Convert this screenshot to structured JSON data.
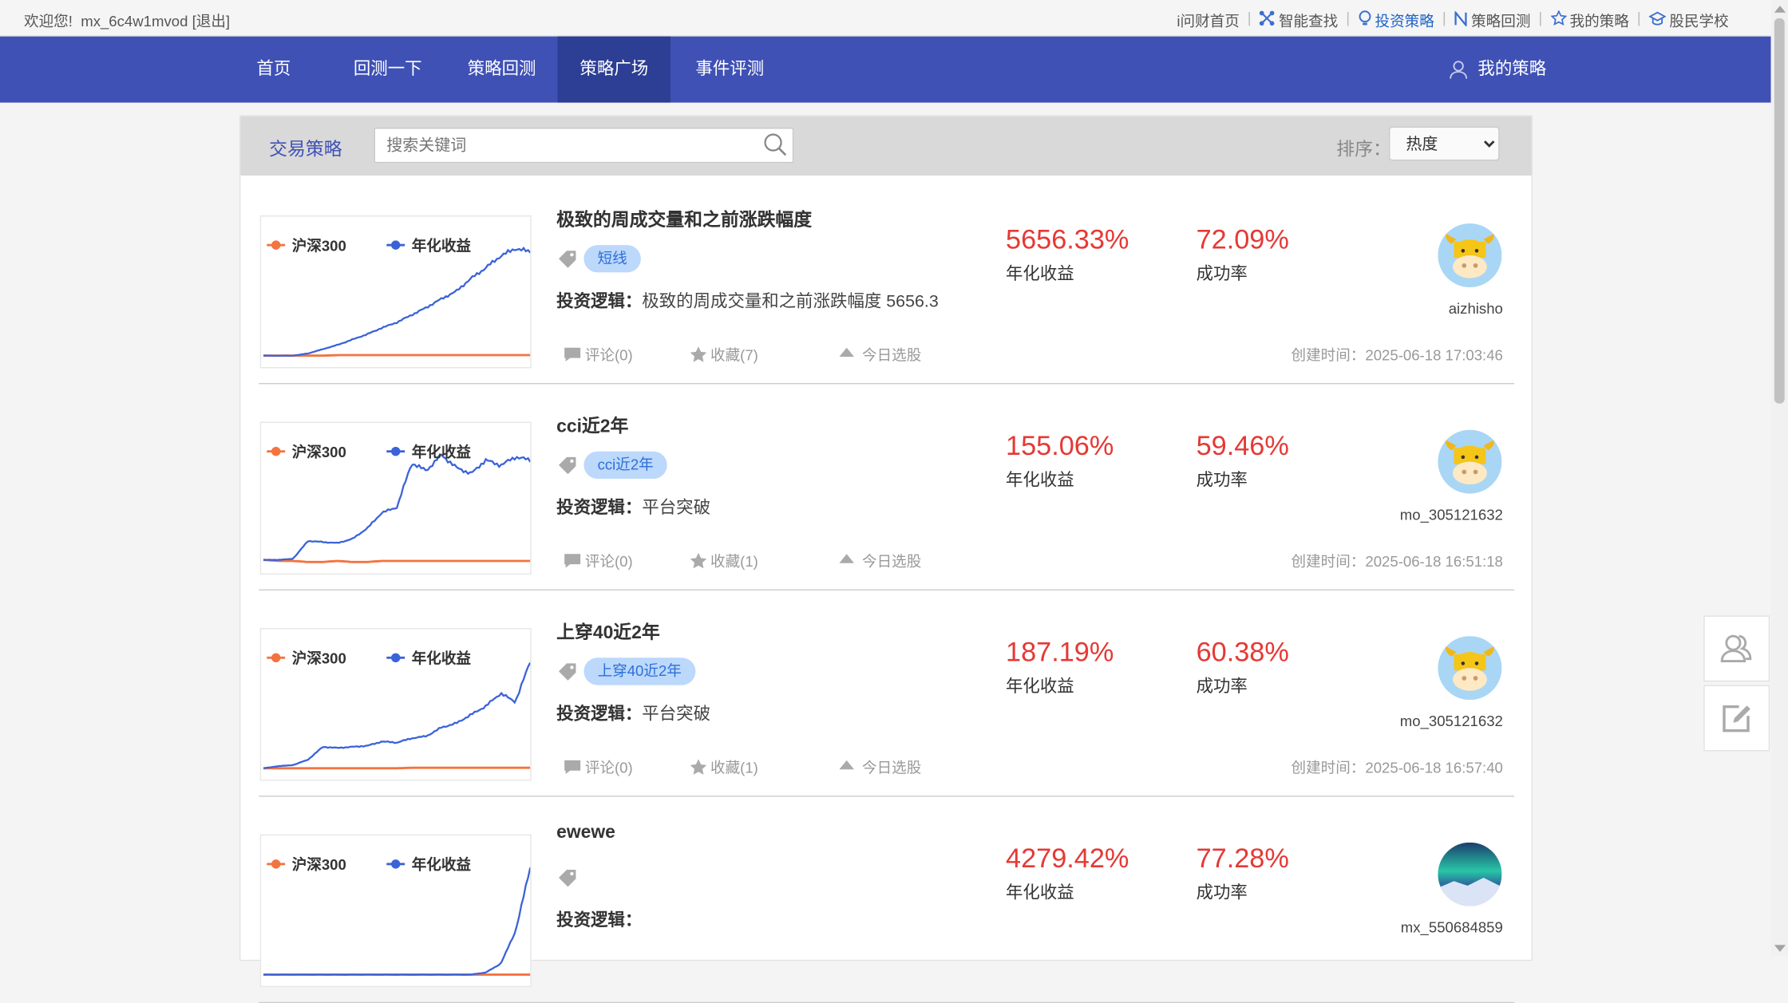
{
  "topbar": {
    "welcome": "欢迎您!",
    "username": "mx_6c4w1mvod",
    "logout": "[退出]",
    "links": [
      {
        "label": "i问财首页",
        "icon": ""
      },
      {
        "label": "智能查找",
        "icon": "network-icon"
      },
      {
        "label": "投资策略",
        "icon": "bulb-icon",
        "active": true
      },
      {
        "label": "策略回测",
        "icon": "n-icon"
      },
      {
        "label": "我的策略",
        "icon": "star-icon"
      },
      {
        "label": "股民学校",
        "icon": "school-icon"
      }
    ]
  },
  "nav": {
    "items": [
      "首页",
      "回测一下",
      "策略回测",
      "策略广场",
      "事件评测"
    ],
    "active": "策略广场",
    "mine": "我的策略"
  },
  "header": {
    "title": "交易策略",
    "search_placeholder": "搜索关键词",
    "sort_label": "排序：",
    "sort_value": "热度"
  },
  "colors": {
    "accent": "#3f51b5",
    "red": "#e53935",
    "hs300": "#f4733f",
    "strategy": "#3b63d8"
  },
  "legend": {
    "benchmark": "沪深300",
    "strategy": "年化收益"
  },
  "labels": {
    "annual": "年化收益",
    "win": "成功率",
    "logic": "投资逻辑：",
    "today": "今日选股",
    "created": "创建时间："
  },
  "cards": [
    {
      "name": "极致的周成交量和之前涨跌幅度",
      "tag": "短线",
      "logic": "极致的周成交量和之前涨跌幅度 5656.3",
      "annual": "5656.33%",
      "win": "72.09%",
      "user": "aizhisho",
      "avatar": "cow",
      "comments": "评论(0)",
      "favorites": "收藏(7)",
      "created": "2025-06-18 17:03:46",
      "chart": {
        "strategy": [
          0,
          0,
          0,
          0.02,
          0.06,
          0.1,
          0.15,
          0.2,
          0.26,
          0.31,
          0.38,
          0.45,
          0.53,
          0.6,
          0.72,
          0.82,
          0.93,
          1.0,
          0.97
        ],
        "benchmark": [
          0,
          0,
          0,
          0,
          0,
          0.005,
          0.005,
          0.005,
          0.005,
          0.005,
          0.005,
          0.005,
          0.005,
          0.005,
          0.005,
          0.005,
          0.005,
          0.005,
          0.005
        ]
      }
    },
    {
      "name": "cci近2年",
      "tag": "cci近2年",
      "logic": "平台突破",
      "annual": "155.06%",
      "win": "59.46%",
      "user": "mo_305121632",
      "avatar": "cow",
      "comments": "评论(0)",
      "favorites": "收藏(1)",
      "created": "2025-06-18 16:51:18",
      "chart": {
        "strategy": [
          0,
          0,
          0.01,
          0.18,
          0.17,
          0.16,
          0.2,
          0.3,
          0.45,
          0.5,
          0.92,
          0.85,
          1.0,
          0.88,
          0.82,
          0.95,
          0.9,
          0.98,
          0.95
        ],
        "benchmark": [
          0,
          -0.01,
          -0.01,
          -0.02,
          -0.02,
          -0.01,
          -0.02,
          -0.02,
          -0.01,
          -0.01,
          -0.01,
          -0.01,
          -0.01,
          -0.01,
          -0.01,
          -0.01,
          -0.01,
          -0.01,
          -0.01
        ]
      }
    },
    {
      "name": "上穿40近2年",
      "tag": "上穿40近2年",
      "logic": "平台突破",
      "annual": "187.19%",
      "win": "60.38%",
      "user": "mo_305121632",
      "avatar": "cow",
      "comments": "评论(0)",
      "favorites": "收藏(1)",
      "created": "2025-06-18 16:57:40",
      "chart": {
        "strategy": [
          0,
          0.02,
          0.03,
          0.08,
          0.2,
          0.19,
          0.2,
          0.21,
          0.25,
          0.24,
          0.28,
          0.3,
          0.38,
          0.42,
          0.5,
          0.58,
          0.7,
          0.62,
          1.0
        ],
        "benchmark": [
          0,
          0,
          0,
          0,
          0,
          0,
          0,
          0,
          0,
          0,
          0.005,
          0.005,
          0.005,
          0.005,
          0.005,
          0.005,
          0.005,
          0.005,
          0.005
        ]
      }
    },
    {
      "name": "ewewe",
      "tag": "",
      "logic": "",
      "annual": "4279.42%",
      "win": "77.28%",
      "user": "mx_550684859",
      "avatar": "aurora",
      "comments": "",
      "favorites": "",
      "created": "",
      "chart": {
        "strategy": [
          0,
          0,
          0,
          0,
          0,
          0,
          0,
          0,
          0,
          0,
          0,
          0,
          0,
          0,
          0,
          0.02,
          0.1,
          0.4,
          1.0
        ],
        "benchmark": [
          0,
          0,
          0,
          0,
          0,
          0,
          0,
          0,
          0,
          0,
          0,
          0,
          0,
          0,
          0,
          0,
          0,
          0,
          0
        ]
      }
    }
  ],
  "float_buttons": [
    "contacts-icon",
    "edit-icon"
  ]
}
